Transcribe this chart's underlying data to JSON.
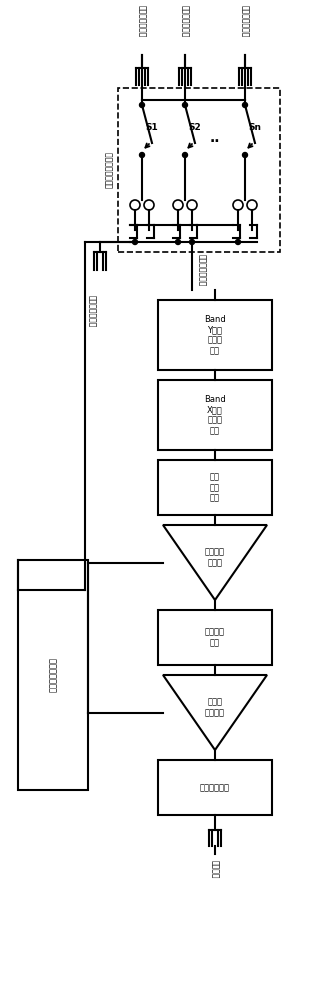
{
  "bg_color": "#ffffff",
  "line_color": "#000000",
  "labels": {
    "tx_rx_pin": "发射及接收引脚",
    "switch_label": "收发信号选通开关",
    "s1": "S1",
    "s2": "S2",
    "sn": "Sn",
    "rx_common": "接收信号公共端",
    "tx_common": "发射信号公共端",
    "band_y": "Band\nY谐波滤波除网络",
    "band_x": "Band\nX谐波滤波除网络",
    "output_match": "输出匹配电路",
    "amp2": "第二级放大单元",
    "inter_match": "级间匹配电路",
    "amp1": "第一级放大单元",
    "input_match": "输入匹配电路",
    "input_pin": "输入引脚",
    "control_bias": "控制及偏置单元"
  }
}
